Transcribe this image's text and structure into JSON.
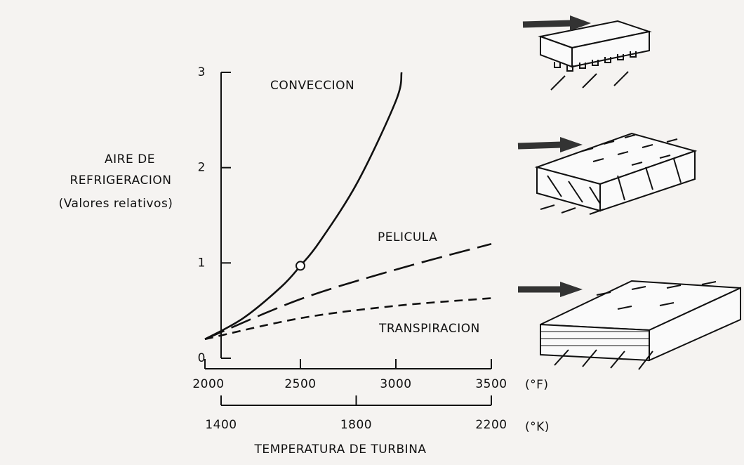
{
  "chart_data": {
    "type": "line",
    "y_label_lines": [
      "AIRE DE",
      "REFRIGERACION",
      "(Valores relativos)"
    ],
    "x_label": "TEMPERATURA DE TURBINA",
    "x_unit": "(°F)",
    "x2_unit": "(°K)",
    "xlim": [
      2000,
      3500
    ],
    "xticks": [
      2000,
      2500,
      3000,
      3500
    ],
    "x2lim": [
      1400,
      2200
    ],
    "x2ticks": [
      1400,
      1800,
      2200
    ],
    "ylim": [
      0,
      3
    ],
    "yticks": [
      0,
      1,
      2,
      3
    ],
    "series": [
      {
        "name": "CONVECCION",
        "color": "#111111",
        "dash": "none",
        "x": [
          2000,
          2200,
          2400,
          2500,
          2600,
          2800,
          3000,
          3030
        ],
        "values": [
          0.2,
          0.42,
          0.75,
          0.97,
          1.22,
          1.85,
          2.7,
          3.0
        ]
      },
      {
        "name": "PELICULA",
        "color": "#111111",
        "dash": "30 11",
        "x": [
          2000,
          2500,
          3000,
          3500
        ],
        "values": [
          0.2,
          0.62,
          0.93,
          1.2
        ]
      },
      {
        "name": "TRANSPIRACION",
        "color": "#111111",
        "dash": "12 8",
        "x": [
          2000,
          2500,
          3000,
          3500
        ],
        "values": [
          0.2,
          0.42,
          0.55,
          0.63
        ]
      }
    ]
  }
}
